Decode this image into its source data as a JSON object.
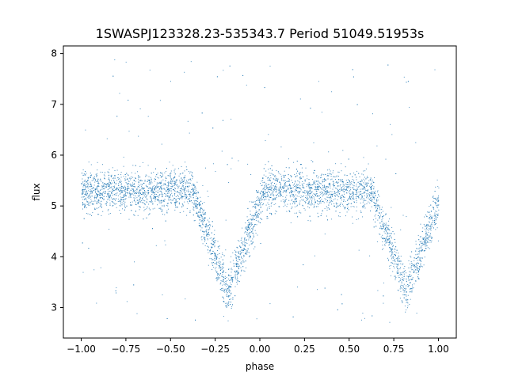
{
  "chart_data": {
    "type": "scatter",
    "title": "1SWASPJ123328.23-535343.7 Period 51049.51953s",
    "xlabel": "phase",
    "ylabel": "flux",
    "xlim": [
      -1.1,
      1.1
    ],
    "ylim": [
      2.4,
      8.15
    ],
    "xticks": [
      -1.0,
      -0.75,
      -0.5,
      -0.25,
      0.0,
      0.25,
      0.5,
      0.75,
      1.0
    ],
    "xtick_labels": [
      "−1.00",
      "−0.75",
      "−0.50",
      "−0.25",
      "0.00",
      "0.25",
      "0.50",
      "0.75",
      "1.00"
    ],
    "yticks": [
      3,
      4,
      5,
      6,
      7,
      8
    ],
    "ytick_labels": [
      "3",
      "4",
      "5",
      "6",
      "7",
      "8"
    ],
    "grid": false,
    "marker_color": "#1f77b4",
    "series": [
      {
        "phase_range": [
          -1.0,
          1.0
        ],
        "baseline_flux": 5.3,
        "baseline_scatter": 0.3,
        "eclipses": [
          {
            "phase_center": -0.18,
            "min_flux": 3.3,
            "half_width": 0.2
          },
          {
            "phase_center": 0.82,
            "min_flux": 3.3,
            "half_width": 0.2
          }
        ],
        "outlier_flux_range": [
          2.7,
          7.9
        ]
      }
    ]
  }
}
